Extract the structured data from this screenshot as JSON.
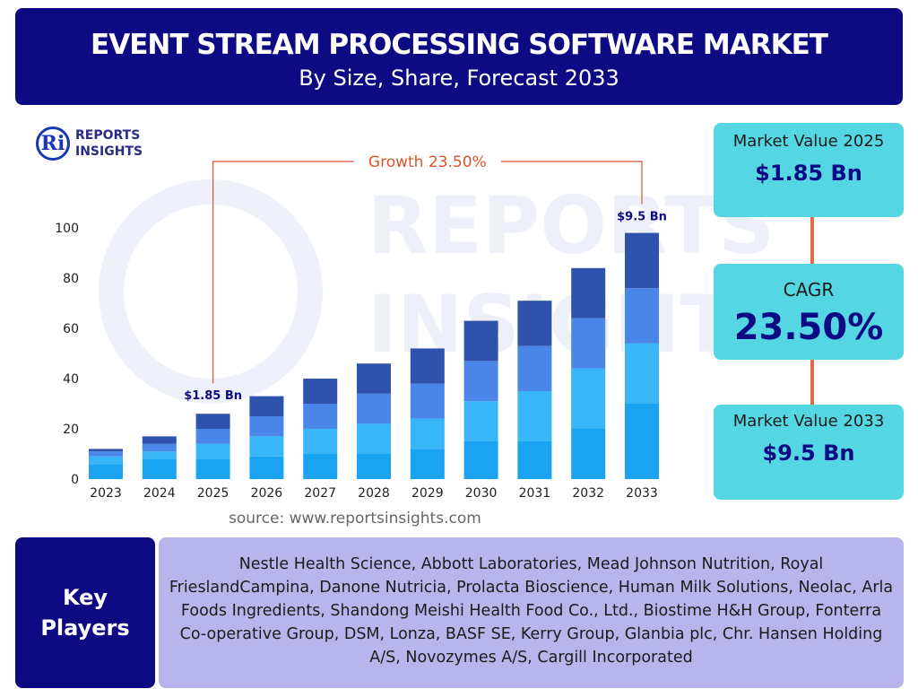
{
  "header": {
    "title": "EVENT STREAM PROCESSING SOFTWARE MARKET",
    "subtitle": "By Size, Share, Forecast 2033"
  },
  "logo": {
    "line1": "REPORTS",
    "line2": "INSIGHTS",
    "mark": "Ri"
  },
  "watermark": {
    "line1": "REPORTS",
    "line2": "INSIGHTS"
  },
  "chart_data": {
    "type": "bar",
    "stacked": true,
    "categories": [
      "2023",
      "2024",
      "2025",
      "2026",
      "2027",
      "2028",
      "2029",
      "2030",
      "2031",
      "2032",
      "2033"
    ],
    "series": [
      {
        "values": [
          6,
          8,
          8,
          9,
          10,
          10,
          12,
          15,
          15,
          20,
          30
        ],
        "color": "#1aa3f0"
      },
      {
        "values": [
          3,
          3,
          6,
          8,
          10,
          12,
          12,
          16,
          20,
          24,
          24
        ],
        "color": "#38b6f7"
      },
      {
        "values": [
          2,
          3,
          6,
          8,
          10,
          12,
          14,
          16,
          18,
          20,
          22
        ],
        "color": "#4a86e8"
      },
      {
        "values": [
          1,
          3,
          6,
          8,
          10,
          12,
          14,
          16,
          18,
          20,
          22
        ],
        "color": "#2f53ad"
      }
    ],
    "ylim": [
      0,
      100
    ],
    "yticks": [
      0,
      20,
      40,
      60,
      80,
      100
    ],
    "xlabel": "",
    "ylabel": "",
    "grid": false,
    "annotations": {
      "growth_label": "Growth 23.50%",
      "start_label": "$1.85 Bn",
      "start_category": "2025",
      "end_label": "$9.5 Bn",
      "end_category": "2033"
    }
  },
  "source": "source: www.reportsinsights.com",
  "cards": {
    "value2025": {
      "label": "Market Value 2025",
      "value": "$1.85 Bn"
    },
    "cagr": {
      "label": "CAGR",
      "value": "23.50%"
    },
    "value2033": {
      "label": "Market Value 2033",
      "value": "$9.5 Bn"
    }
  },
  "colors": {
    "primary": "#0d0b83",
    "accent": "#55d6e3",
    "connector": "#e3694a",
    "growth": "#d9542c",
    "players_bg": "#b8b4ec"
  },
  "key_players": {
    "heading": "Key Players",
    "list": "Nestle Health Science, Abbott Laboratories, Mead Johnson Nutrition, Royal FrieslandCampina, Danone Nutricia, Prolacta Bioscience, Human Milk Solutions, Neolac, Arla Foods Ingredients, Shandong Meishi Health Food Co., Ltd., Biostime H&H Group, Fonterra Co-operative Group, DSM, Lonza, BASF SE, Kerry Group, Glanbia plc, Chr. Hansen Holding A/S, Novozymes A/S, Cargill Incorporated"
  }
}
